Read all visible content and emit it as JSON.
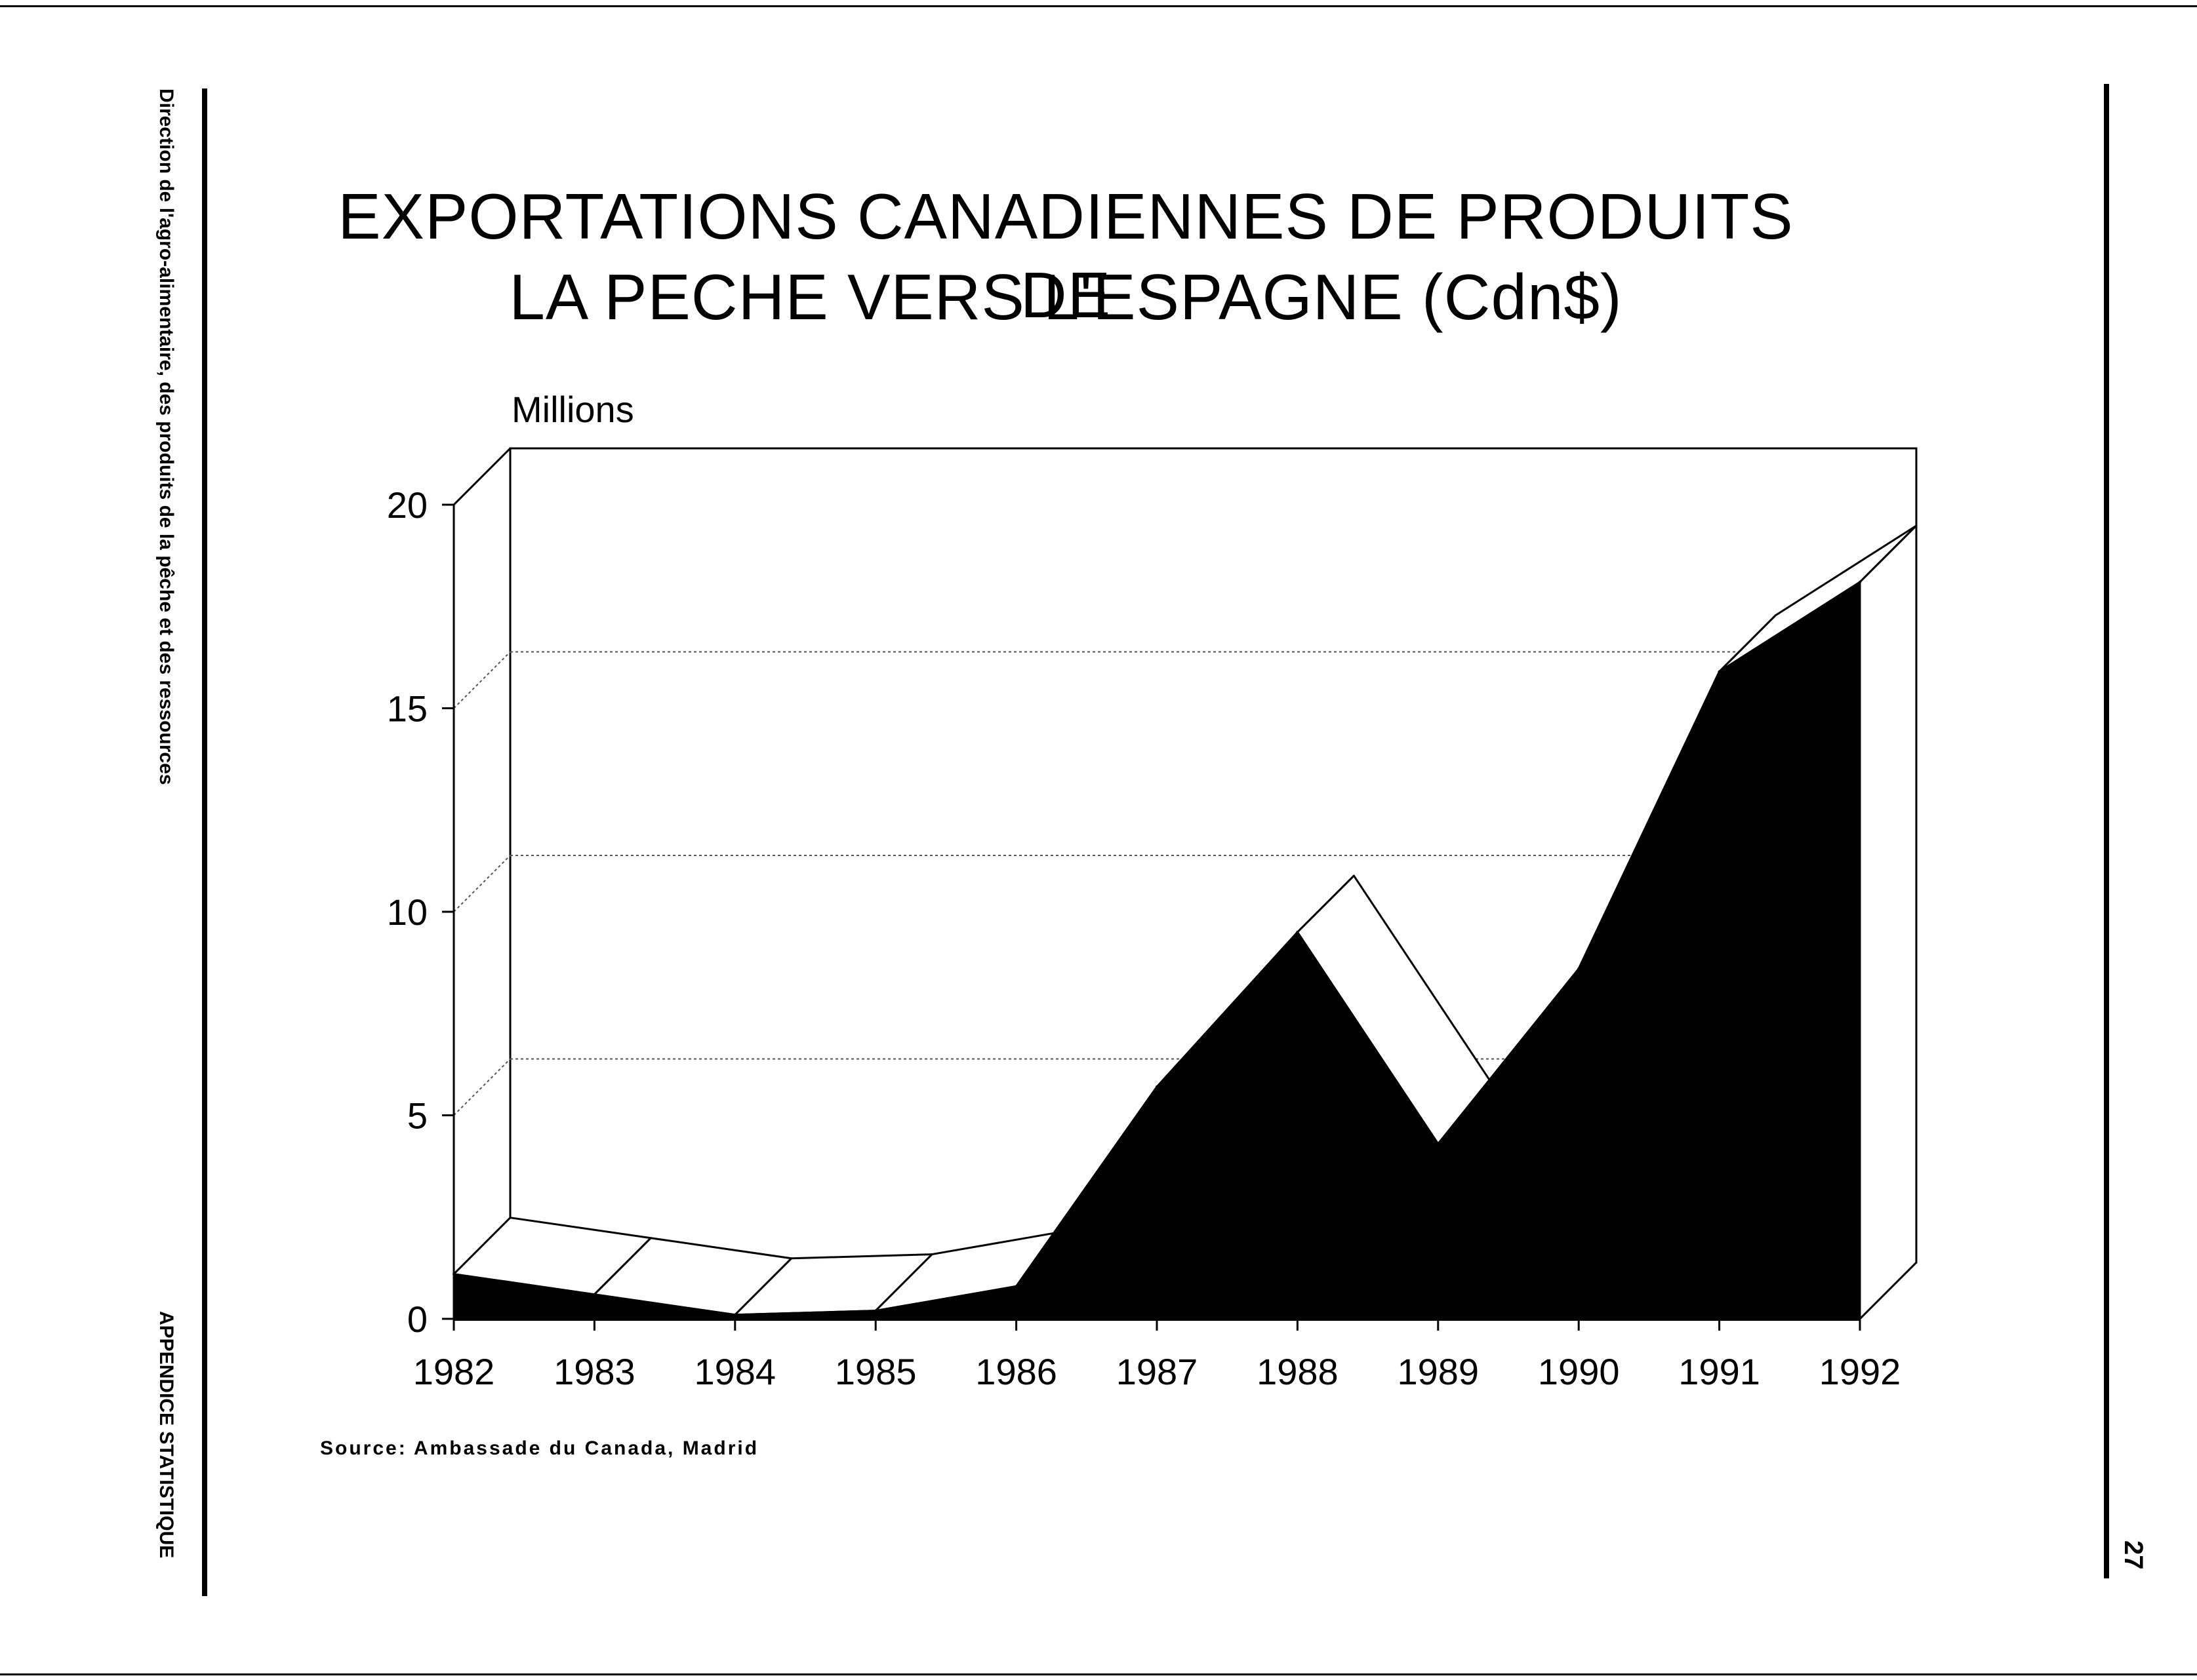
{
  "sidebar": {
    "top_text": "Direction de l'agro-alimentaire, des produits de la pêche et des ressources",
    "bottom_text": "APPENDICE STATISTIQUE"
  },
  "page_number": "27",
  "chart_data": {
    "type": "area",
    "title_line1": "EXPORTATIONS CANADIENNES DE PRODUITS DE",
    "title_line2": "LA PECHE VERS L'ESPAGNE (Cdn$)",
    "ylabel": "Millions",
    "xlabel": "",
    "categories": [
      "1982",
      "1983",
      "1984",
      "1985",
      "1986",
      "1987",
      "1988",
      "1989",
      "1990",
      "1991",
      "1992"
    ],
    "values": [
      1.1,
      0.6,
      0.1,
      0.2,
      0.8,
      5.7,
      9.5,
      4.3,
      8.6,
      15.9,
      18.1
    ],
    "yticks": [
      "0",
      "5",
      "10",
      "15",
      "20"
    ],
    "ylim": [
      0,
      20
    ],
    "grid": true,
    "three_d": true,
    "fill_color": "#000000",
    "source": "Source: Ambassade du Canada, Madrid"
  }
}
